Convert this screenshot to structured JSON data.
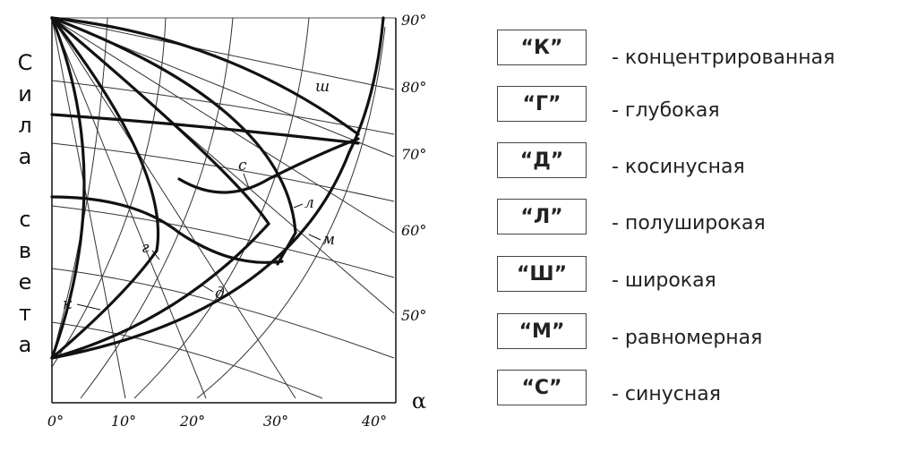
{
  "diagram": {
    "y_axis_label": [
      "С",
      "и",
      "л",
      "а",
      "",
      "с",
      "в",
      "е",
      "т",
      "а"
    ],
    "x_axis_symbol": "α",
    "x_ticks": [
      "0°",
      "10°",
      "20°",
      "30°",
      "40°"
    ],
    "right_ticks": [
      "90°",
      "80°",
      "70°",
      "60°",
      "50°"
    ],
    "curve_labels": {
      "sh": "ш",
      "s": "с",
      "l": "л",
      "m": "м",
      "g": "г",
      "d": "д",
      "k": "к"
    }
  },
  "legend": [
    {
      "code": "“К”",
      "desc": "- концентрированная"
    },
    {
      "code": "“Г”",
      "desc": "- глубокая"
    },
    {
      "code": "“Д”",
      "desc": "- косинусная"
    },
    {
      "code": "“Л”",
      "desc": "- полуширокая"
    },
    {
      "code": "“Ш”",
      "desc": "- широкая"
    },
    {
      "code": "“М”",
      "desc": "- равномерная"
    },
    {
      "code": "“С”",
      "desc": "- синусная"
    }
  ]
}
